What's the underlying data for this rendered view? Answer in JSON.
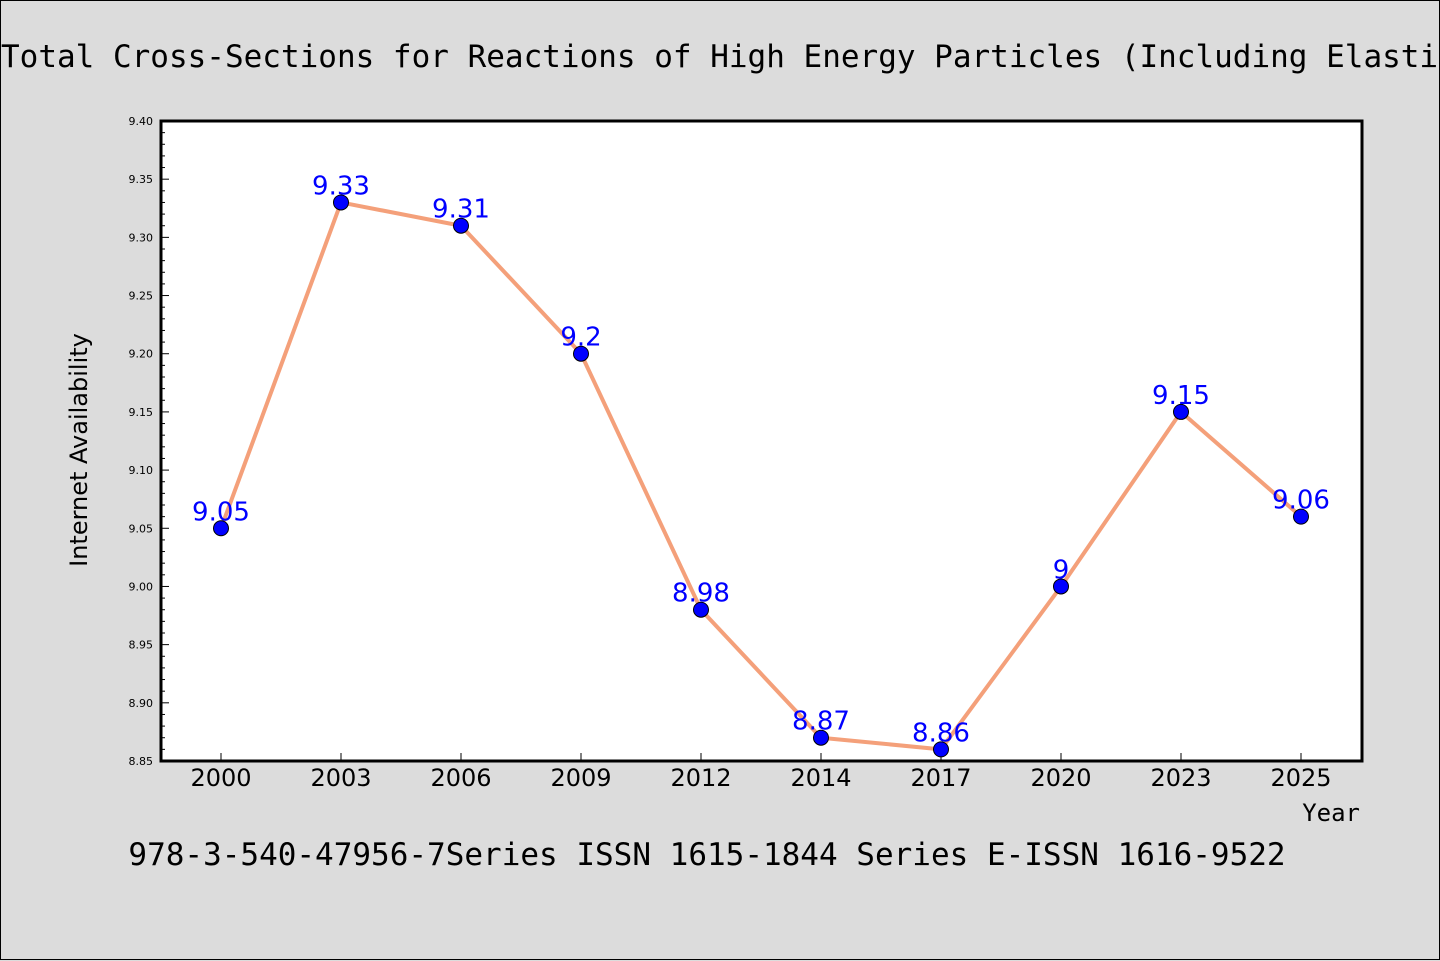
{
  "chart_data": {
    "type": "line",
    "title": "Total Cross-Sections for Reactions of High Energy Particles (Including Elastic,",
    "xlabel": "Year",
    "ylabel": "Internet Availability",
    "categories": [
      "2000",
      "2003",
      "2006",
      "2009",
      "2012",
      "2014",
      "2017",
      "2020",
      "2023",
      "2025"
    ],
    "series": [
      {
        "values": [
          9.05,
          9.33,
          9.31,
          9.2,
          8.98,
          8.87,
          8.86,
          9.0,
          9.15,
          9.06
        ],
        "labels": [
          "9.05",
          "9.33",
          "9.31",
          "9.2",
          "8.98",
          "8.87",
          "8.86",
          "9",
          "9.15",
          "9.06"
        ],
        "line_color": "#f4a07a",
        "marker_color": "#0000ff"
      }
    ],
    "ylim": [
      8.85,
      9.4
    ],
    "yticks": [
      "8.85",
      "8.90",
      "8.95",
      "9.00",
      "9.05",
      "9.10",
      "9.15",
      "9.20",
      "9.25",
      "9.30",
      "9.35",
      "9.40"
    ],
    "grid": false,
    "legend": "none"
  },
  "footer": {
    "text": "978-3-540-47956-7Series ISSN 1615-1844 Series E-ISSN 1616-9522"
  },
  "colors": {
    "background": "#dcdcdc",
    "plot_background": "#ffffff",
    "data_label": "#0000ff"
  }
}
